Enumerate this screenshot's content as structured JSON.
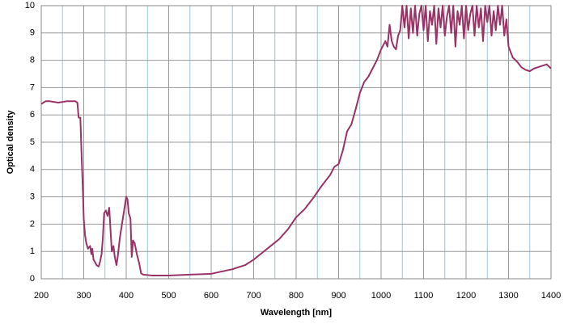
{
  "chart_data": {
    "type": "line",
    "xlabel": "Wavelength [nm]",
    "ylabel": "Optical density",
    "color": "#993366",
    "grid": true,
    "xlim": [
      200,
      1400
    ],
    "ylim": [
      0,
      10
    ],
    "xticks": [
      200,
      300,
      400,
      500,
      600,
      700,
      800,
      900,
      1000,
      1100,
      1200,
      1300,
      1400
    ],
    "xminor_grid": [
      250,
      350,
      450,
      550,
      650,
      750,
      850,
      950,
      1050,
      1150,
      1250,
      1350
    ],
    "yticks": [
      0,
      1,
      2,
      3,
      4,
      5,
      6,
      7,
      8,
      9,
      10
    ],
    "x": [
      200,
      210,
      220,
      240,
      260,
      280,
      285,
      288,
      292,
      295,
      298,
      300,
      303,
      306,
      310,
      315,
      318,
      320,
      323,
      327,
      330,
      335,
      338,
      342,
      345,
      348,
      352,
      356,
      360,
      363,
      366,
      370,
      373,
      377,
      380,
      385,
      390,
      395,
      400,
      403,
      406,
      410,
      413,
      416,
      420,
      425,
      430,
      435,
      440,
      460,
      500,
      550,
      600,
      620,
      650,
      680,
      700,
      720,
      740,
      760,
      780,
      800,
      820,
      840,
      860,
      880,
      890,
      900,
      910,
      920,
      930,
      940,
      950,
      960,
      970,
      980,
      990,
      1000,
      1010,
      1015,
      1020,
      1025,
      1030,
      1035,
      1040,
      1045,
      1050,
      1055,
      1060,
      1065,
      1070,
      1075,
      1080,
      1085,
      1090,
      1095,
      1100,
      1105,
      1110,
      1115,
      1120,
      1125,
      1130,
      1135,
      1140,
      1145,
      1150,
      1155,
      1160,
      1165,
      1170,
      1175,
      1180,
      1185,
      1190,
      1195,
      1200,
      1205,
      1210,
      1215,
      1220,
      1225,
      1230,
      1235,
      1240,
      1245,
      1250,
      1255,
      1260,
      1265,
      1270,
      1275,
      1280,
      1285,
      1290,
      1295,
      1300,
      1310,
      1320,
      1330,
      1340,
      1350,
      1360,
      1370,
      1380,
      1390,
      1400
    ],
    "values": [
      6.4,
      6.5,
      6.5,
      6.45,
      6.5,
      6.5,
      6.45,
      5.9,
      5.9,
      4.5,
      3.2,
      2.2,
      1.6,
      1.3,
      1.1,
      1.2,
      0.9,
      1.1,
      0.7,
      0.6,
      0.5,
      0.45,
      0.6,
      0.9,
      1.5,
      2.4,
      2.5,
      2.3,
      2.6,
      1.8,
      1.0,
      1.2,
      0.8,
      0.5,
      0.8,
      1.5,
      2.0,
      2.5,
      3.0,
      2.9,
      2.4,
      2.2,
      0.8,
      1.4,
      1.3,
      0.9,
      0.6,
      0.2,
      0.15,
      0.12,
      0.12,
      0.15,
      0.18,
      0.25,
      0.35,
      0.5,
      0.7,
      0.95,
      1.2,
      1.45,
      1.8,
      2.25,
      2.55,
      2.95,
      3.4,
      3.8,
      4.1,
      4.2,
      4.7,
      5.4,
      5.65,
      6.2,
      6.8,
      7.2,
      7.4,
      7.7,
      8.0,
      8.4,
      8.7,
      8.5,
      9.3,
      8.7,
      8.5,
      8.4,
      8.9,
      9.1,
      10,
      9.2,
      10,
      8.8,
      9.9,
      9.0,
      10,
      8.9,
      9.7,
      10,
      9.1,
      10,
      8.7,
      9.8,
      9.3,
      10,
      8.6,
      9.9,
      9.2,
      10,
      8.9,
      9.6,
      10,
      9.0,
      10,
      8.5,
      9.8,
      9.3,
      10,
      8.8,
      10,
      9.1,
      9.7,
      10,
      8.9,
      10,
      9.2,
      9.9,
      8.7,
      10,
      9.4,
      10,
      8.9,
      9.8,
      9.1,
      10,
      9.3,
      10,
      8.9,
      9.5,
      8.5,
      8.1,
      7.95,
      7.75,
      7.65,
      7.6,
      7.7,
      7.75,
      7.8,
      7.85,
      7.7
    ]
  }
}
